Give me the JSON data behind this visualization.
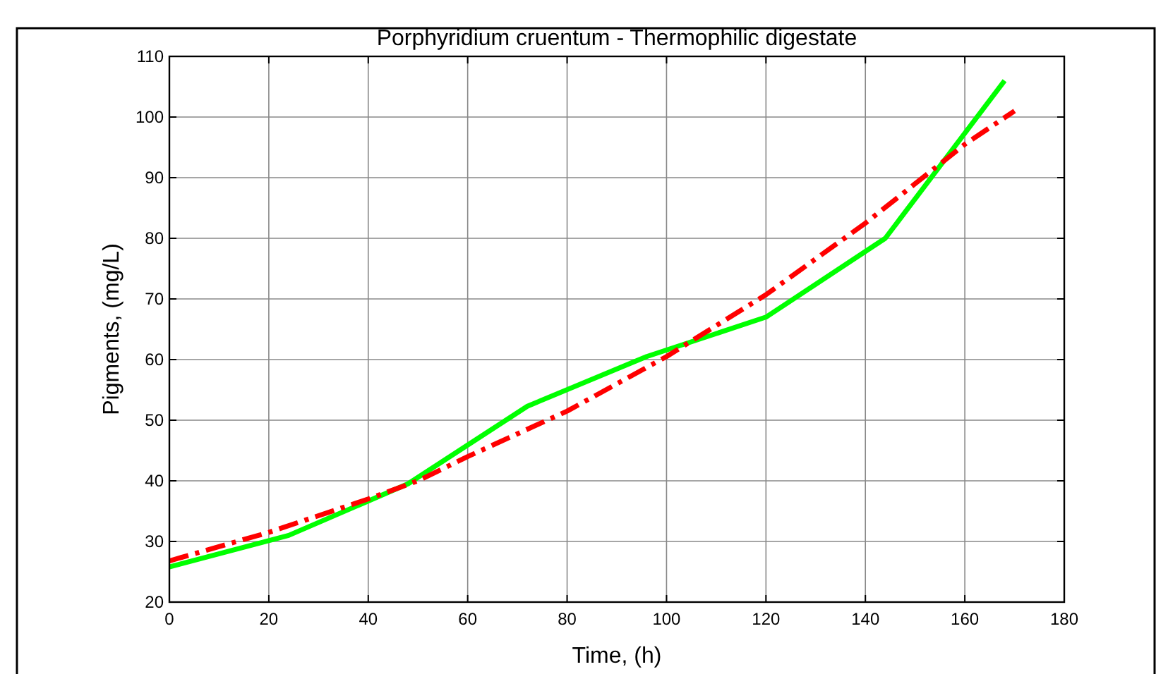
{
  "chart_data": {
    "type": "line",
    "title": "Porphyridium cruentum - Thermophilic digestate",
    "xlabel": "Time, (h)",
    "ylabel": "Pigments, (mg/L)",
    "xlim": [
      0,
      180
    ],
    "xticks": [
      0,
      20,
      40,
      60,
      80,
      100,
      120,
      140,
      160,
      180
    ],
    "ylim": [
      20,
      110
    ],
    "yticks": [
      20,
      30,
      40,
      50,
      60,
      70,
      80,
      90,
      100,
      110
    ],
    "grid": true,
    "marker": "none",
    "series": [
      {
        "color": "#00ff00",
        "line_style": "solid",
        "x": [
          0,
          24,
          48,
          72,
          96,
          120,
          144,
          168
        ],
        "values": [
          25.8,
          31,
          39.5,
          52.3,
          60.5,
          67,
          80,
          106
        ]
      },
      {
        "color": "#ff0000",
        "line_style": "dashed",
        "x": [
          0,
          20,
          40,
          50,
          60,
          80,
          100,
          120,
          140,
          150,
          160,
          170
        ],
        "values": [
          26.8,
          31.5,
          37,
          40,
          44,
          51.5,
          60.5,
          70.7,
          82.5,
          89,
          95.5,
          101
        ]
      }
    ]
  }
}
